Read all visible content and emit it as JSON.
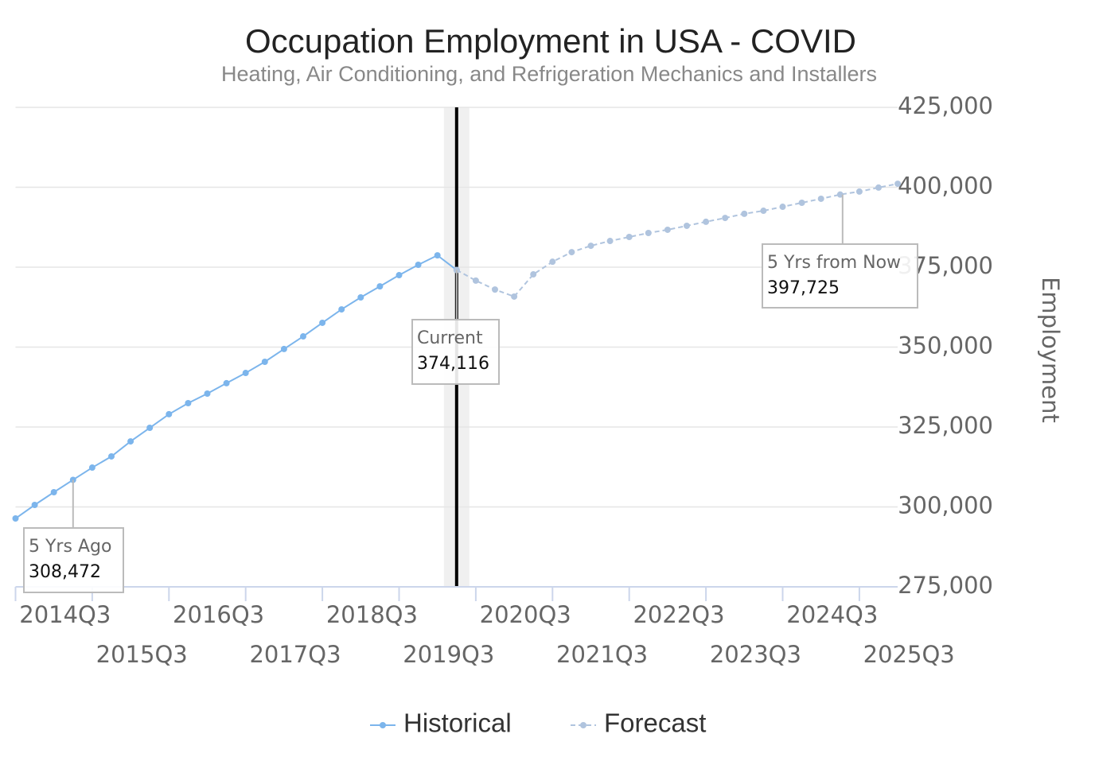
{
  "chart_data": {
    "type": "line",
    "title": "Occupation Employment in USA - COVID",
    "subtitle": "Heating, Air Conditioning, and Refrigeration Mechanics and Installers",
    "y_label": "Employment",
    "categories": [
      null,
      null,
      null,
      "2014Q3",
      null,
      null,
      null,
      "2015Q3",
      null,
      null,
      null,
      "2016Q3",
      null,
      null,
      null,
      "2017Q3",
      null,
      null,
      null,
      "2018Q3",
      null,
      null,
      null,
      "2019Q3",
      null,
      null,
      null,
      "2020Q3",
      null,
      null,
      null,
      "2021Q3",
      null,
      null,
      null,
      "2022Q3",
      null,
      null,
      null,
      "2023Q3",
      null,
      null,
      null,
      "2024Q3",
      null,
      null,
      null,
      "2025Q3"
    ],
    "series": [
      {
        "name": "Historical",
        "color": "#7cb5ec",
        "dashed": false,
        "values": [
          296390,
          300620,
          304600,
          308472,
          312300,
          315800,
          320500,
          324750,
          329000,
          332460,
          335450,
          338700,
          341900,
          345400,
          349400,
          353350,
          357600,
          361800,
          365550,
          369000,
          372500,
          375750,
          378700,
          374116,
          null,
          null,
          null,
          null,
          null,
          null,
          null,
          null,
          null,
          null,
          null,
          null,
          null,
          null,
          null,
          null,
          null,
          null,
          null,
          null,
          null,
          null,
          null,
          null
        ]
      },
      {
        "name": "Forecast",
        "color": "#b0c4de",
        "dashed": true,
        "values": [
          null,
          null,
          null,
          null,
          null,
          null,
          null,
          null,
          null,
          null,
          null,
          null,
          null,
          null,
          null,
          null,
          null,
          null,
          null,
          null,
          null,
          null,
          null,
          374116,
          370800,
          368000,
          365800,
          372750,
          376700,
          379700,
          381700,
          383200,
          384450,
          385700,
          386700,
          387950,
          389200,
          390400,
          391700,
          392650,
          393900,
          395150,
          396400,
          397725,
          398650,
          399900,
          401100,
          null
        ]
      }
    ],
    "annotations": [
      {
        "text": "5 Yrs Ago",
        "category": "2014Q3",
        "value": 308472,
        "value_label": "308,472"
      },
      {
        "text": "Current",
        "category": "2019Q3",
        "value": 374116,
        "value_label": "374,116"
      },
      {
        "text": "5 Yrs from Now",
        "category": "2024Q3",
        "value": 397725,
        "value_label": "397,725"
      }
    ],
    "current_category": "2019Q3",
    "ylim": [
      275000,
      425000
    ],
    "yticks": [
      {
        "value": 275000,
        "label": "275,000"
      },
      {
        "value": 300000,
        "label": "300,000"
      },
      {
        "value": 325000,
        "label": "325,000"
      },
      {
        "value": 350000,
        "label": "350,000"
      },
      {
        "value": 375000,
        "label": "375,000"
      },
      {
        "value": 400000,
        "label": "400,000"
      },
      {
        "value": 425000,
        "label": "425,000"
      }
    ],
    "grid": true,
    "y_axis_side": "right",
    "legend": "bottom"
  }
}
